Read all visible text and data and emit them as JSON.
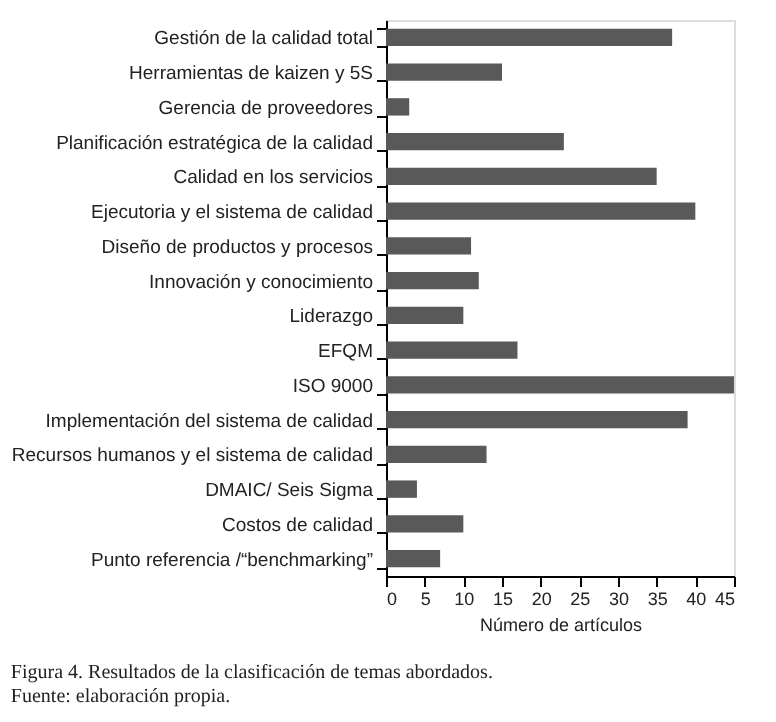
{
  "chart_data": {
    "type": "bar",
    "orientation": "horizontal",
    "xlabel": "Número de artículos",
    "categories": [
      "Gestión de la calidad total",
      "Herramientas de kaizen y 5S",
      "Gerencia de proveedores",
      "Planificación estratégica de la calidad",
      "Calidad en los servicios",
      "Ejecutoria y el sistema de calidad",
      "Diseño de productos y procesos",
      "Innovación y conocimiento",
      "Liderazgo",
      "EFQM",
      "ISO 9000",
      "Implementación del sistema de calidad",
      "Recursos humanos y el sistema de calidad",
      "DMAIC/ Seis Sigma",
      "Costos de calidad",
      "Punto referencia /“benchmarking”"
    ],
    "values": [
      37,
      15,
      3,
      23,
      35,
      40,
      11,
      12,
      10,
      17,
      45,
      39,
      13,
      4,
      10,
      7
    ],
    "color": "#595959",
    "xlim": [
      0,
      45
    ],
    "xticks": [
      0,
      5,
      10,
      15,
      20,
      25,
      30,
      35,
      40,
      45
    ],
    "grid": false,
    "annotations": [
      "Figura 4. Resultados de la clasificación de temas abordados.",
      "Fuente: elaboración propia."
    ]
  }
}
